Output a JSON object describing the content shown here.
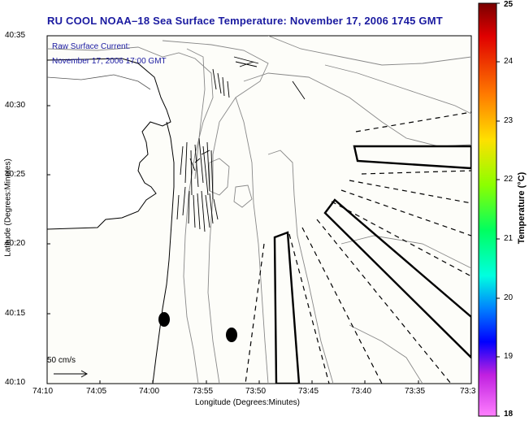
{
  "title": "RU COOL  NOAA–18  Sea Surface Temperature:  November 17, 2006 1745 GMT",
  "annotation": {
    "line1": "Raw Surface Current:",
    "line2": "November 17, 2006 17:00 GMT"
  },
  "axes": {
    "xlabel": "Longitude (Degrees:Minutes)",
    "ylabel": "Latitude (Degrees:Minutes)",
    "xticks": [
      "74:10",
      "74:05",
      "74:00",
      "73:55",
      "73:50",
      "73:45",
      "73:40",
      "73:35",
      "73:3"
    ],
    "yticks": [
      "40:35",
      "40:30",
      "40:25",
      "40:20",
      "40:15",
      "40:10"
    ]
  },
  "colorbar": {
    "label": "Temperature (°C)",
    "ticks": [
      "25",
      "24",
      "23",
      "22",
      "21",
      "20",
      "19",
      "18"
    ],
    "min": 18,
    "max": 25
  },
  "scale": {
    "label": "50 cm/s"
  }
}
